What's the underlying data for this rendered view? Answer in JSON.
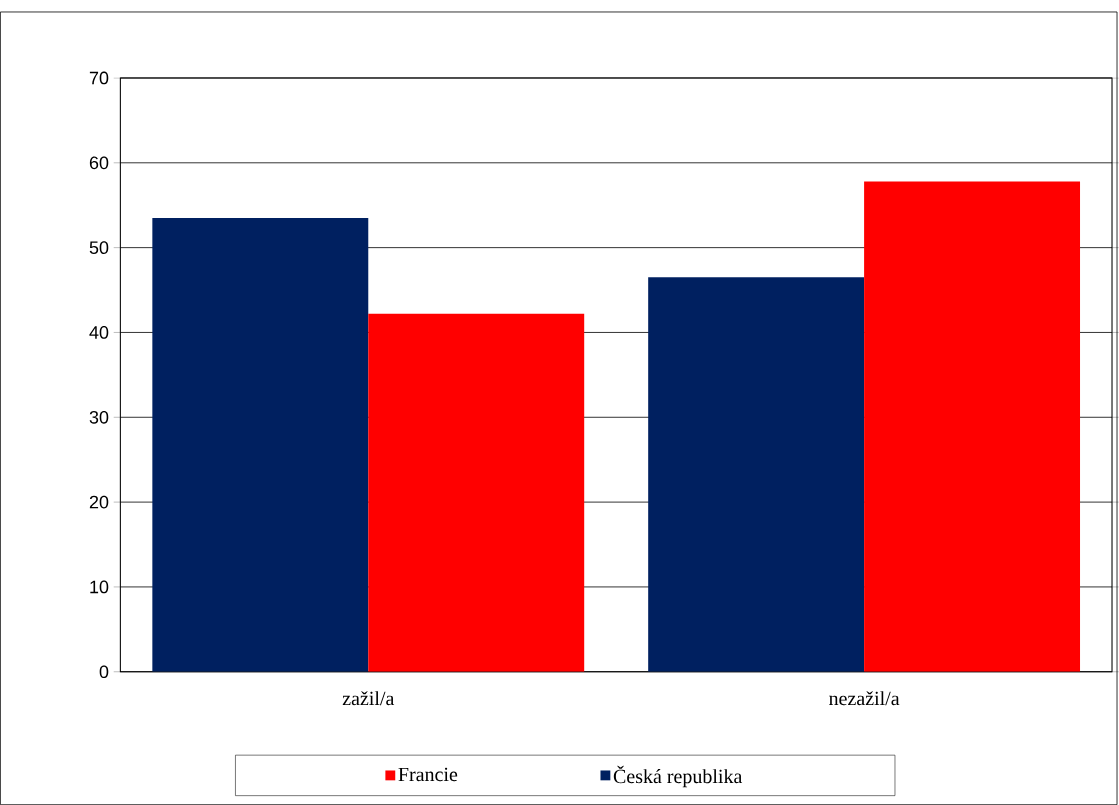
{
  "chart_data": {
    "type": "bar",
    "categories": [
      "zažil/a",
      "nezažil/a"
    ],
    "series": [
      {
        "name": "Česká republika",
        "color": "#002060",
        "values": [
          53.5,
          46.5
        ]
      },
      {
        "name": "Francie",
        "color": "#ff0000",
        "values": [
          42.2,
          57.8
        ]
      }
    ],
    "ylim": [
      0,
      70
    ],
    "yticks": [
      0,
      10,
      20,
      30,
      40,
      50,
      60,
      70
    ],
    "grid": "y",
    "legend": "bottom"
  }
}
